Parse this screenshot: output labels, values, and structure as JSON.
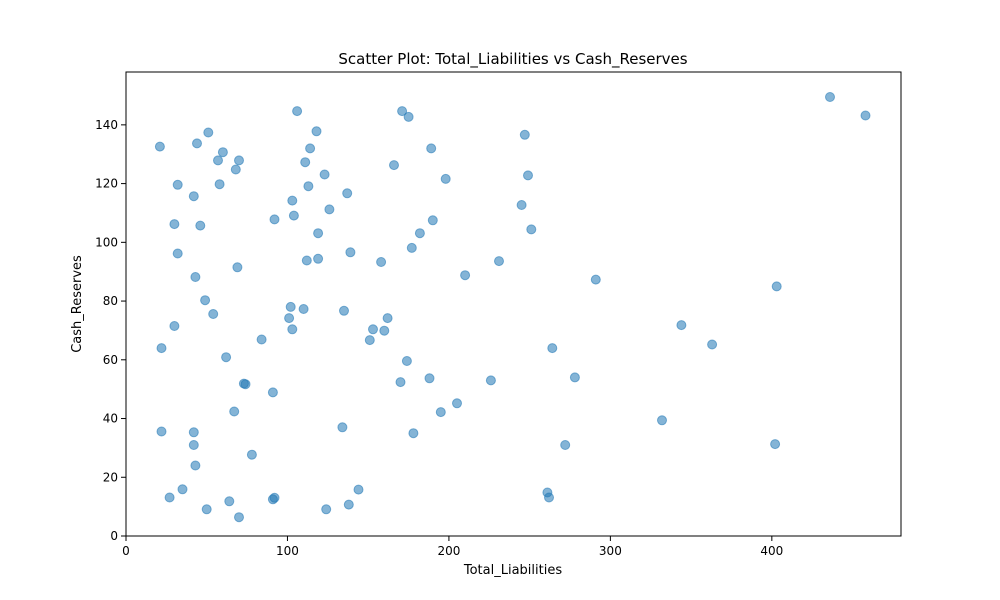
{
  "chart_data": {
    "type": "scatter",
    "title": "Scatter Plot: Total_Liabilities vs Cash_Reserves",
    "xlabel": "Total_Liabilities",
    "ylabel": "Cash_Reserves",
    "xlim": [
      0,
      480
    ],
    "ylim": [
      0,
      158
    ],
    "xticks": [
      0,
      100,
      200,
      300,
      400
    ],
    "yticks": [
      0,
      20,
      40,
      60,
      80,
      100,
      120,
      140
    ],
    "grid": false,
    "marker_color": "#1f77b4",
    "marker_alpha": 0.55,
    "points": [
      [
        21,
        132.6
      ],
      [
        22,
        64.0
      ],
      [
        22,
        35.6
      ],
      [
        27,
        13.1
      ],
      [
        30,
        106.2
      ],
      [
        30,
        71.5
      ],
      [
        32,
        119.6
      ],
      [
        32,
        96.2
      ],
      [
        35,
        15.9
      ],
      [
        42,
        115.7
      ],
      [
        42,
        35.3
      ],
      [
        42,
        31.0
      ],
      [
        43,
        88.2
      ],
      [
        43,
        24.0
      ],
      [
        44,
        133.7
      ],
      [
        46,
        105.7
      ],
      [
        49,
        80.3
      ],
      [
        50,
        9.1
      ],
      [
        51,
        137.4
      ],
      [
        54,
        75.6
      ],
      [
        57,
        127.9
      ],
      [
        58,
        119.8
      ],
      [
        60,
        130.7
      ],
      [
        62,
        60.9
      ],
      [
        64,
        11.8
      ],
      [
        67,
        42.4
      ],
      [
        68,
        124.8
      ],
      [
        69,
        91.5
      ],
      [
        70,
        127.9
      ],
      [
        70,
        6.4
      ],
      [
        73,
        51.9
      ],
      [
        74,
        51.7
      ],
      [
        78,
        27.7
      ],
      [
        84,
        66.9
      ],
      [
        91,
        48.9
      ],
      [
        91,
        12.5
      ],
      [
        92,
        13.0
      ],
      [
        92,
        107.8
      ],
      [
        101,
        74.2
      ],
      [
        102,
        78.0
      ],
      [
        103,
        114.2
      ],
      [
        103,
        70.4
      ],
      [
        104,
        109.1
      ],
      [
        106,
        144.7
      ],
      [
        110,
        77.3
      ],
      [
        111,
        127.3
      ],
      [
        112,
        93.8
      ],
      [
        113,
        119.1
      ],
      [
        114,
        132.0
      ],
      [
        118,
        137.8
      ],
      [
        119,
        103.1
      ],
      [
        119,
        94.4
      ],
      [
        123,
        123.1
      ],
      [
        124,
        9.1
      ],
      [
        126,
        111.2
      ],
      [
        134,
        37.0
      ],
      [
        135,
        76.7
      ],
      [
        137,
        116.7
      ],
      [
        138,
        10.7
      ],
      [
        139,
        96.6
      ],
      [
        144,
        15.8
      ],
      [
        151,
        66.7
      ],
      [
        153,
        70.4
      ],
      [
        158,
        93.3
      ],
      [
        160,
        69.9
      ],
      [
        162,
        74.2
      ],
      [
        166,
        126.3
      ],
      [
        170,
        52.4
      ],
      [
        171,
        144.7
      ],
      [
        174,
        59.6
      ],
      [
        175,
        142.7
      ],
      [
        177,
        98.1
      ],
      [
        178,
        35.0
      ],
      [
        182,
        103.1
      ],
      [
        188,
        53.7
      ],
      [
        189,
        132.0
      ],
      [
        190,
        107.5
      ],
      [
        195,
        42.2
      ],
      [
        198,
        121.6
      ],
      [
        205,
        45.2
      ],
      [
        210,
        88.8
      ],
      [
        226,
        53.0
      ],
      [
        231,
        93.6
      ],
      [
        245,
        112.7
      ],
      [
        247,
        136.6
      ],
      [
        249,
        122.8
      ],
      [
        251,
        104.4
      ],
      [
        261,
        14.8
      ],
      [
        262,
        13.1
      ],
      [
        264,
        64.0
      ],
      [
        272,
        31.0
      ],
      [
        278,
        54.0
      ],
      [
        291,
        87.3
      ],
      [
        332,
        39.4
      ],
      [
        344,
        71.8
      ],
      [
        363,
        65.2
      ],
      [
        402,
        31.3
      ],
      [
        403,
        85.0
      ],
      [
        436,
        149.5
      ],
      [
        458,
        143.2
      ]
    ]
  }
}
